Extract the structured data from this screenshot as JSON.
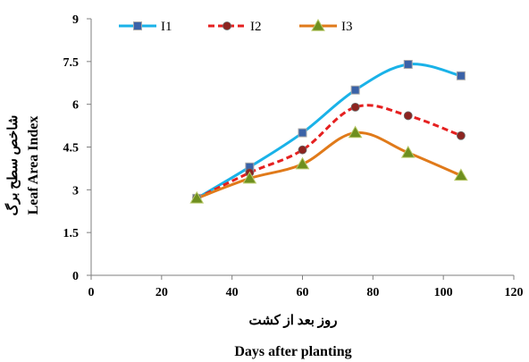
{
  "chart_data": {
    "type": "line",
    "x": [
      30,
      45,
      60,
      75,
      90,
      105
    ],
    "series": [
      {
        "name": "I1",
        "values": [
          2.7,
          3.8,
          5.0,
          6.5,
          7.4,
          7.0
        ],
        "color": "#1ab2e8",
        "line_style": "solid",
        "marker": "square",
        "marker_color": "#3a62a8"
      },
      {
        "name": "I2",
        "values": [
          2.7,
          3.6,
          4.4,
          5.9,
          5.6,
          4.9
        ],
        "color": "#e52020",
        "line_style": "dashed",
        "marker": "circle",
        "marker_color": "#8c2420"
      },
      {
        "name": "I3",
        "values": [
          2.7,
          3.4,
          3.9,
          5.0,
          4.3,
          3.5
        ],
        "color": "#e07a1a",
        "line_style": "solid",
        "marker": "triangle",
        "marker_color": "#6e8f1f"
      }
    ],
    "xlim": [
      0,
      120
    ],
    "ylim": [
      0,
      9
    ],
    "x_ticks": [
      "0",
      "20",
      "40",
      "60",
      "80",
      "100",
      "120"
    ],
    "y_ticks": [
      "0",
      "1.5",
      "3",
      "4.5",
      "6",
      "7.5",
      "9"
    ],
    "xlabel_fa": "روز بعد از کشت",
    "xlabel": "Days after planting",
    "ylabel_fa": "شاخص سطح برگ",
    "ylabel": "Leaf Area Index",
    "legend_position": "top-left",
    "grid": false,
    "smooth": true
  }
}
